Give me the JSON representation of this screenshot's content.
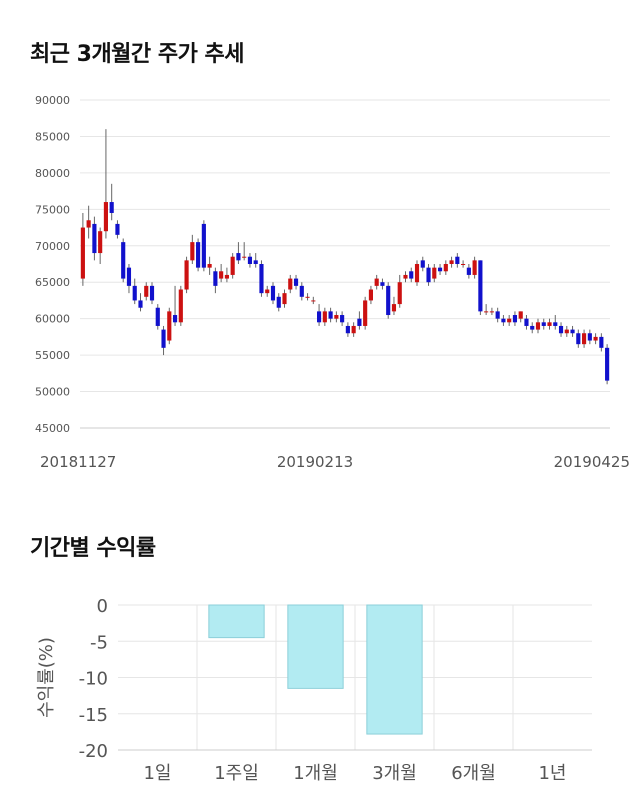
{
  "section1": {
    "title": "최근 3개월간 주가 추세"
  },
  "section2": {
    "title": "기간별 수익률"
  },
  "chart_data": [
    {
      "type": "candlestick",
      "ylim": [
        45000,
        90000
      ],
      "y_ticks": [
        "90000",
        "85000",
        "80000",
        "75000",
        "70000",
        "65000",
        "60000",
        "55000",
        "50000",
        "45000"
      ],
      "x_tick_labels": [
        "20181127",
        "20190213",
        "20190425"
      ],
      "grid": true,
      "colors": {
        "up": "#cc1111",
        "down": "#1111cc"
      },
      "candles": [
        [
          65500,
          72500,
          64500,
          74500
        ],
        [
          72500,
          73500,
          71000,
          75500
        ],
        [
          73000,
          69000,
          68000,
          74000
        ],
        [
          69000,
          72000,
          67500,
          72500
        ],
        [
          72000,
          76000,
          71000,
          86000
        ],
        [
          76000,
          74500,
          73500,
          78500
        ],
        [
          73000,
          71500,
          71000,
          73500
        ],
        [
          70500,
          65500,
          65000,
          71000
        ],
        [
          67000,
          64500,
          63500,
          67500
        ],
        [
          64500,
          62500,
          62000,
          65500
        ],
        [
          62500,
          61500,
          61000,
          63500
        ],
        [
          63000,
          64500,
          62500,
          65000
        ],
        [
          64500,
          62500,
          62000,
          65000
        ],
        [
          61500,
          59000,
          58500,
          62000
        ],
        [
          58500,
          56000,
          55000,
          59000
        ],
        [
          57000,
          61000,
          56500,
          61500
        ],
        [
          60500,
          59500,
          59000,
          64500
        ],
        [
          59500,
          64000,
          59000,
          64500
        ],
        [
          64000,
          68000,
          63500,
          68500
        ],
        [
          68000,
          70500,
          67500,
          71500
        ],
        [
          70500,
          67000,
          66500,
          71000
        ],
        [
          73000,
          67000,
          66500,
          73500
        ],
        [
          67000,
          67500,
          66000,
          68500
        ],
        [
          66500,
          64500,
          63500,
          67000
        ],
        [
          65500,
          66500,
          65000,
          67500
        ],
        [
          65500,
          66000,
          65000,
          67000
        ],
        [
          66000,
          68500,
          65500,
          69000
        ],
        [
          69000,
          68000,
          67500,
          70500
        ],
        [
          68500,
          68500,
          68000,
          70500
        ],
        [
          68500,
          67500,
          67000,
          69000
        ],
        [
          68000,
          67500,
          67000,
          69000
        ],
        [
          67500,
          63500,
          63000,
          68000
        ],
        [
          63500,
          64000,
          63000,
          64500
        ],
        [
          64500,
          62500,
          62000,
          65000
        ],
        [
          63000,
          61500,
          61000,
          63500
        ],
        [
          62000,
          63500,
          61500,
          64000
        ],
        [
          64000,
          65500,
          63500,
          66000
        ],
        [
          65500,
          64500,
          64000,
          66000
        ],
        [
          64500,
          63000,
          62500,
          65000
        ],
        [
          63000,
          63000,
          62500,
          63500
        ],
        [
          62500,
          62500,
          62000,
          63000
        ],
        [
          61000,
          59500,
          59000,
          62000
        ],
        [
          59500,
          61000,
          59000,
          61500
        ],
        [
          61000,
          60000,
          59500,
          61500
        ],
        [
          60000,
          60500,
          59500,
          61000
        ],
        [
          60500,
          59500,
          59000,
          61000
        ],
        [
          59000,
          58000,
          57500,
          59500
        ],
        [
          58000,
          59000,
          57500,
          59500
        ],
        [
          60000,
          59000,
          58500,
          61000
        ],
        [
          59000,
          62500,
          58500,
          63000
        ],
        [
          62500,
          64000,
          62000,
          64500
        ],
        [
          64500,
          65500,
          64000,
          66000
        ],
        [
          65000,
          64500,
          64000,
          65500
        ],
        [
          64500,
          60500,
          60000,
          65000
        ],
        [
          61000,
          62000,
          60500,
          63000
        ],
        [
          62000,
          65000,
          61500,
          66000
        ],
        [
          65500,
          66000,
          65000,
          66500
        ],
        [
          66500,
          65500,
          65000,
          67000
        ],
        [
          65000,
          67500,
          64500,
          68000
        ],
        [
          68000,
          67000,
          66500,
          68500
        ],
        [
          67000,
          65000,
          64500,
          67500
        ],
        [
          65500,
          67000,
          65000,
          67500
        ],
        [
          67000,
          66500,
          66000,
          67500
        ],
        [
          66500,
          67500,
          66000,
          68000
        ],
        [
          67500,
          68000,
          67000,
          68500
        ],
        [
          68500,
          67500,
          67000,
          69000
        ],
        [
          67500,
          67500,
          67000,
          68000
        ],
        [
          67000,
          66000,
          65500,
          67500
        ],
        [
          66000,
          68000,
          65500,
          68500
        ],
        [
          68000,
          61000,
          60500,
          68000
        ],
        [
          61000,
          61000,
          60500,
          62000
        ],
        [
          61000,
          61000,
          60500,
          61500
        ],
        [
          61000,
          60000,
          59500,
          61500
        ],
        [
          60000,
          59500,
          59000,
          60500
        ],
        [
          59500,
          60000,
          59000,
          60500
        ],
        [
          60500,
          59500,
          59000,
          61000
        ],
        [
          60000,
          61000,
          59500,
          61000
        ],
        [
          60000,
          59000,
          58500,
          60500
        ],
        [
          59000,
          58500,
          58000,
          59500
        ],
        [
          58500,
          59500,
          58000,
          60000
        ],
        [
          59500,
          59000,
          58500,
          60000
        ],
        [
          59000,
          59500,
          58500,
          60000
        ],
        [
          59500,
          59000,
          58500,
          60500
        ],
        [
          59000,
          58000,
          57500,
          59500
        ],
        [
          58000,
          58500,
          57500,
          59000
        ],
        [
          58500,
          58000,
          57500,
          59000
        ],
        [
          58000,
          56500,
          56000,
          58500
        ],
        [
          56500,
          58000,
          56000,
          58500
        ],
        [
          58000,
          57000,
          56500,
          58500
        ],
        [
          57000,
          57500,
          56500,
          58000
        ],
        [
          57500,
          56000,
          55500,
          58000
        ],
        [
          56000,
          51500,
          51000,
          56500
        ]
      ]
    },
    {
      "type": "bar",
      "categories": [
        "1일",
        "1주일",
        "1개월",
        "3개월",
        "6개월",
        "1년"
      ],
      "values": [
        null,
        -4.5,
        -11.5,
        -17.8,
        null,
        null
      ],
      "ylim": [
        -20,
        0
      ],
      "y_ticks": [
        "0",
        "-5",
        "-10",
        "-15",
        "-20"
      ],
      "ylabel": "수익률(%)",
      "grid": true,
      "colors": {
        "bar": "#b2ebf2",
        "bar_edge": "#8ccfd9"
      }
    }
  ]
}
